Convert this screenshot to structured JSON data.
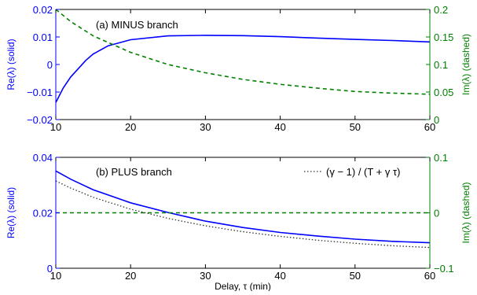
{
  "chart_data": [
    {
      "type": "line",
      "title": "",
      "annotation": "(a) MINUS branch",
      "xlabel": "",
      "ylabel_left": "Re(λ) (solid)",
      "ylabel_right": "Im(λ) (dashed)",
      "xlim": [
        10,
        60
      ],
      "ylim_left": [
        -0.02,
        0.02
      ],
      "ylim_right": [
        0,
        0.2
      ],
      "x_ticks": [
        10,
        20,
        30,
        40,
        50,
        60
      ],
      "x_tick_labels": [
        "10",
        "20",
        "30",
        "40",
        "50",
        "60"
      ],
      "y_ticks_left": [
        -0.02,
        -0.01,
        0,
        0.01,
        0.02
      ],
      "y_tick_labels_left": [
        "−0.02",
        "−0.01",
        "0",
        "0.01",
        "0.02"
      ],
      "y_ticks_right": [
        0,
        0.05,
        0.1,
        0.15,
        0.2
      ],
      "y_tick_labels_right": [
        "0",
        "0.05",
        "0.1",
        "0.15",
        "0.2"
      ],
      "series": [
        {
          "axis": "left",
          "color": "#0000ff",
          "dash": "solid",
          "x": [
            10,
            11,
            12,
            13,
            14,
            15,
            17,
            20,
            25,
            30,
            35,
            40,
            45,
            50,
            55,
            60
          ],
          "y": [
            -0.0138,
            -0.0085,
            -0.0045,
            -0.0015,
            0.0015,
            0.0038,
            0.0068,
            0.009,
            0.0104,
            0.0106,
            0.0105,
            0.0101,
            0.0096,
            0.0091,
            0.0087,
            0.0082
          ]
        },
        {
          "axis": "right",
          "color": "#008000",
          "dash": "dashed",
          "x": [
            10,
            12,
            15,
            20,
            25,
            30,
            35,
            40,
            45,
            50,
            55,
            60
          ],
          "y": [
            0.2,
            0.178,
            0.152,
            0.122,
            0.1,
            0.085,
            0.073,
            0.064,
            0.057,
            0.051,
            0.048,
            0.046
          ]
        }
      ],
      "colors": {
        "left_axis": "#0000ff",
        "right_axis": "#008000"
      }
    },
    {
      "type": "line",
      "title": "",
      "annotation": "(b) PLUS branch",
      "xlabel": "Delay, τ (min)",
      "ylabel_left": "Re(λ) (solid)",
      "ylabel_right": "Im(λ) (dashed)",
      "xlim": [
        10,
        60
      ],
      "ylim_left": [
        0,
        0.04
      ],
      "ylim_right": [
        -0.1,
        0.1
      ],
      "x_ticks": [
        10,
        20,
        30,
        40,
        50,
        60
      ],
      "x_tick_labels": [
        "10",
        "20",
        "30",
        "40",
        "50",
        "60"
      ],
      "y_ticks_left": [
        0,
        0.02,
        0.04
      ],
      "y_tick_labels_left": [
        "0",
        "0.02",
        "0.04"
      ],
      "y_ticks_right": [
        -0.1,
        0,
        0.1
      ],
      "y_tick_labels_right": [
        "−0.1",
        "0",
        "0.1"
      ],
      "legend": {
        "label": "(γ − 1) / (T + γ τ)",
        "position": "top-right"
      },
      "series": [
        {
          "axis": "left",
          "color": "#0000ff",
          "dash": "solid",
          "x": [
            10,
            12,
            15,
            20,
            25,
            30,
            35,
            40,
            45,
            50,
            55,
            60
          ],
          "y": [
            0.0351,
            0.0321,
            0.0283,
            0.0236,
            0.0201,
            0.017,
            0.0147,
            0.0129,
            0.0116,
            0.0105,
            0.0097,
            0.0092
          ]
        },
        {
          "axis": "right",
          "color": "#008000",
          "dash": "dashed",
          "x": [
            10,
            60
          ],
          "y": [
            0,
            0
          ]
        },
        {
          "axis": "left",
          "color": "#333333",
          "dash": "dotted",
          "legend": true,
          "x": [
            10,
            12,
            15,
            20,
            25,
            30,
            35,
            40,
            45,
            50,
            55,
            60
          ],
          "y": [
            0.0315,
            0.0289,
            0.0256,
            0.0213,
            0.018,
            0.0153,
            0.0132,
            0.0115,
            0.0101,
            0.009,
            0.0081,
            0.0075
          ]
        }
      ],
      "colors": {
        "left_axis": "#0000ff",
        "right_axis": "#008000"
      }
    }
  ]
}
